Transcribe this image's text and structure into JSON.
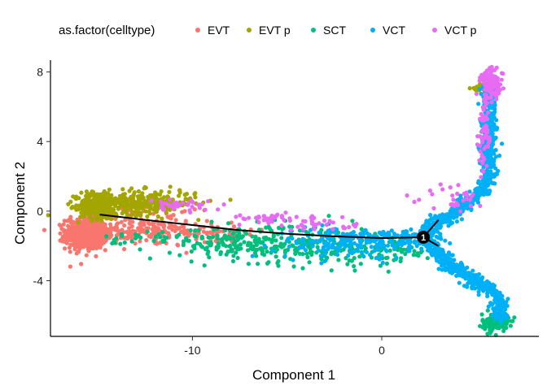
{
  "chart_data": {
    "type": "scatter",
    "xlabel": "Component 1",
    "ylabel": "Component 2",
    "xlim": [
      -17.5,
      8.3
    ],
    "ylim": [
      -7.2,
      8.4
    ],
    "x_ticks": [
      -10,
      0
    ],
    "x_tick_labels": [
      "-10",
      "0"
    ],
    "y_ticks": [
      -4,
      0,
      4,
      8
    ],
    "y_tick_labels": [
      "-4",
      "0",
      "4",
      "8"
    ],
    "grid": false,
    "legend": {
      "title": "as.factor(celltype)",
      "placement": "top"
    },
    "series": [
      {
        "name": "EVT",
        "color": "#F8766D",
        "clusters": [
          {
            "cx": -15.6,
            "cy": -1.3,
            "sx": 0.55,
            "sy": 0.45,
            "n": 650
          },
          {
            "cx": -12.5,
            "cy": -1.2,
            "sx": 1.6,
            "sy": 0.4,
            "n": 160
          },
          {
            "cx": -9.0,
            "cy": -1.3,
            "sx": 1.2,
            "sy": 0.35,
            "n": 60
          },
          {
            "cx": -13.0,
            "cy": 0.0,
            "sx": 1.4,
            "sy": 0.35,
            "n": 50
          }
        ]
      },
      {
        "name": "EVT p",
        "color": "#A3A500",
        "clusters": [
          {
            "cx": -15.0,
            "cy": 0.3,
            "sx": 0.5,
            "sy": 0.4,
            "n": 260
          },
          {
            "cx": -12.8,
            "cy": 0.5,
            "sx": 1.5,
            "sy": 0.35,
            "n": 300
          },
          {
            "cx": 5.2,
            "cy": 7.0,
            "sx": 0.25,
            "sy": 0.2,
            "n": 20
          }
        ]
      },
      {
        "name": "SCT",
        "color": "#00BF7D",
        "clusters": [
          {
            "cx": -7.5,
            "cy": -1.8,
            "sx": 1.6,
            "sy": 0.5,
            "n": 160
          },
          {
            "cx": -3.0,
            "cy": -2.0,
            "sx": 2.3,
            "sy": 0.6,
            "n": 200
          },
          {
            "cx": -12.5,
            "cy": -1.6,
            "sx": 1.0,
            "sy": 0.3,
            "n": 30
          },
          {
            "cx": 6.0,
            "cy": -6.4,
            "sx": 0.35,
            "sy": 0.25,
            "n": 130
          },
          {
            "cx": 1.0,
            "cy": -2.2,
            "sx": 0.8,
            "sy": 0.3,
            "n": 30
          }
        ]
      },
      {
        "name": "VCT",
        "color": "#00B0F6",
        "clusters": [
          {
            "cx": -2.0,
            "cy": -1.8,
            "sx": 1.8,
            "sy": 0.45,
            "n": 170
          },
          {
            "cx": 1.0,
            "cy": -1.6,
            "sx": 1.0,
            "sy": 0.3,
            "n": 90
          }
        ],
        "paths": [
          {
            "pts": [
              [
                2.2,
                -1.5
              ],
              [
                3.0,
                -0.8
              ],
              [
                4.0,
                0.1
              ],
              [
                5.2,
                1.0
              ],
              [
                5.7,
                2.0
              ],
              [
                5.6,
                4.0
              ],
              [
                5.6,
                6.0
              ],
              [
                5.7,
                7.3
              ]
            ],
            "spread_x": 0.2,
            "spread_y": 0.15,
            "n": 650
          },
          {
            "pts": [
              [
                2.2,
                -1.5
              ],
              [
                3.2,
                -2.7
              ],
              [
                4.6,
                -3.8
              ],
              [
                5.9,
                -4.6
              ],
              [
                6.3,
                -5.4
              ],
              [
                6.2,
                -6.2
              ]
            ],
            "spread_x": 0.2,
            "spread_y": 0.18,
            "n": 450
          },
          {
            "pts": [
              [
                2.2,
                -1.5
              ],
              [
                2.4,
                -0.6
              ],
              [
                3.2,
                -0.2
              ]
            ],
            "spread_x": 0.15,
            "spread_y": 0.12,
            "n": 40
          }
        ]
      },
      {
        "name": "VCT p",
        "color": "#E76BF3",
        "clusters": [
          {
            "cx": 5.8,
            "cy": 7.3,
            "sx": 0.3,
            "sy": 0.45,
            "n": 110
          },
          {
            "cx": 5.4,
            "cy": 4.4,
            "sx": 0.15,
            "sy": 1.2,
            "n": 60
          },
          {
            "cx": -10.7,
            "cy": 0.3,
            "sx": 0.8,
            "sy": 0.15,
            "n": 40
          },
          {
            "cx": -6.0,
            "cy": -0.4,
            "sx": 1.2,
            "sy": 0.15,
            "n": 40
          },
          {
            "cx": -3.0,
            "cy": -0.8,
            "sx": 1.0,
            "sy": 0.15,
            "n": 30
          },
          {
            "cx": 3.8,
            "cy": 0.8,
            "sx": 0.8,
            "sy": 0.4,
            "n": 30
          }
        ]
      }
    ],
    "trajectory": {
      "color": "#000000",
      "branches": [
        [
          [
            -14.9,
            -0.2
          ],
          [
            -12.5,
            -0.5
          ],
          [
            -10.0,
            -0.8
          ],
          [
            -7.5,
            -1.1
          ],
          [
            -5.0,
            -1.3
          ],
          [
            -2.5,
            -1.45
          ],
          [
            0.0,
            -1.55
          ],
          [
            2.2,
            -1.5
          ]
        ],
        [
          [
            2.2,
            -1.5
          ],
          [
            3.0,
            -0.5
          ]
        ],
        [
          [
            2.2,
            -1.5
          ],
          [
            3.0,
            -2.0
          ]
        ]
      ]
    },
    "branch_points": [
      {
        "x": 2.2,
        "y": -1.5,
        "label": "1",
        "color": "#000000"
      }
    ]
  }
}
